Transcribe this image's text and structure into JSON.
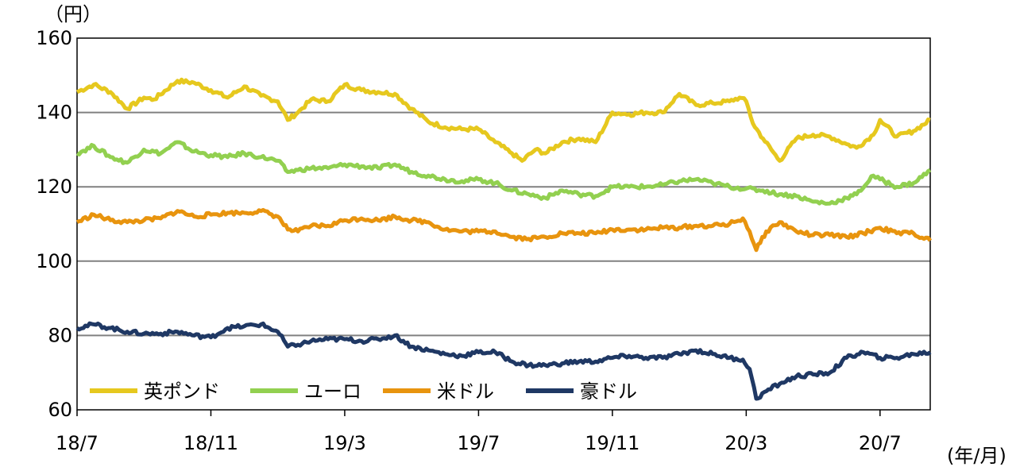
{
  "chart_data": {
    "type": "line",
    "title": "",
    "y_unit_label": "（円）",
    "x_unit_label": "(年/月)",
    "ylim": [
      60,
      160
    ],
    "y_ticks": [
      60,
      80,
      100,
      120,
      140,
      160
    ],
    "y_tick_labels": [
      "60",
      "80",
      "100",
      "120",
      "140",
      "160"
    ],
    "x_tick_labels": [
      "18/7",
      "18/11",
      "19/3",
      "19/7",
      "19/11",
      "20/3",
      "20/7"
    ],
    "x_tick_months": [
      0,
      4,
      8,
      12,
      16,
      20,
      24
    ],
    "x_range_months": [
      0,
      25.5
    ],
    "grid": true,
    "legend_position": "bottom-left",
    "series": [
      {
        "name": "英ポンド",
        "color": "#E6C81E",
        "x": [
          0,
          0.5,
          1,
          1.5,
          2,
          2.3,
          3,
          3.5,
          4,
          4.5,
          5,
          5.5,
          6,
          6.3,
          6.6,
          7,
          7.5,
          8,
          8.5,
          9,
          9.5,
          10,
          10.5,
          11,
          11.5,
          12,
          12.5,
          13,
          13.3,
          13.7,
          14,
          14.5,
          15,
          15.5,
          16,
          16.5,
          17,
          17.5,
          18,
          18.5,
          19,
          19.5,
          19.8,
          20,
          20.2,
          20.5,
          21,
          21.5,
          22,
          22.5,
          23,
          23.3,
          23.8,
          24,
          24.5,
          25,
          25.5
        ],
        "values": [
          145.5,
          147.5,
          145.5,
          141,
          144,
          143.5,
          148.5,
          148,
          146,
          144,
          147,
          144.5,
          143,
          138,
          140,
          143.5,
          143,
          147.5,
          146,
          145.5,
          145,
          141,
          137.5,
          136,
          135.5,
          135.5,
          132,
          129,
          127,
          130,
          129,
          132,
          133,
          132,
          140,
          139.5,
          140,
          140,
          145,
          142,
          142.5,
          143,
          144,
          143,
          137,
          133,
          127,
          133,
          134,
          133.5,
          131.5,
          130.5,
          134,
          138,
          133.5,
          135,
          138
        ]
      },
      {
        "name": "ユーロ",
        "color": "#92D050",
        "x": [
          0,
          0.5,
          1,
          1.5,
          2,
          2.5,
          3,
          3.5,
          4,
          4.5,
          5,
          5.5,
          6,
          6.3,
          6.6,
          7,
          7.5,
          8,
          8.5,
          9,
          9.5,
          10,
          10.5,
          11,
          11.5,
          12,
          12.5,
          13,
          13.5,
          14,
          14.5,
          15,
          15.5,
          16,
          16.5,
          17,
          17.5,
          18,
          18.5,
          19,
          19.5,
          20,
          20.5,
          21,
          21.5,
          22,
          22.5,
          23,
          23.3,
          23.8,
          24,
          24.5,
          25,
          25.5
        ],
        "values": [
          129,
          131,
          128,
          126.5,
          130,
          129,
          132,
          129.5,
          128.5,
          128,
          129,
          128,
          127,
          124,
          124.5,
          125,
          125,
          126,
          125.5,
          125,
          126,
          124,
          123,
          122,
          121.5,
          122,
          121,
          119,
          118,
          117,
          119,
          118,
          117.5,
          120,
          120,
          120,
          120.5,
          121.5,
          122,
          121,
          120,
          119.5,
          119,
          118,
          117.5,
          116,
          115.5,
          117,
          118,
          123,
          122,
          120,
          121,
          124.5
        ]
      },
      {
        "name": "米ドル",
        "color": "#E8940E",
        "x": [
          0,
          0.5,
          1,
          1.5,
          2,
          2.5,
          3,
          3.5,
          4,
          4.5,
          5,
          5.5,
          6,
          6.3,
          6.6,
          7,
          7.5,
          8,
          8.5,
          9,
          9.5,
          10,
          10.5,
          11,
          11.5,
          12,
          12.5,
          13,
          13.5,
          14,
          14.5,
          15,
          15.5,
          16,
          16.5,
          17,
          17.5,
          18,
          18.5,
          19,
          19.5,
          19.9,
          20.1,
          20.3,
          20.6,
          21,
          21.5,
          22,
          22.5,
          23,
          23.5,
          24,
          24.5,
          25,
          25.5
        ],
        "values": [
          110.5,
          112.5,
          111,
          110.5,
          111,
          111.5,
          113.5,
          112,
          112.5,
          113,
          113,
          113.5,
          112,
          108.5,
          108,
          109.5,
          109.5,
          111,
          111.5,
          111,
          112,
          111,
          110.5,
          108.5,
          108,
          108,
          108,
          106.5,
          106,
          106.5,
          107.5,
          107.5,
          107.5,
          108.5,
          108.5,
          108.5,
          109,
          109,
          109.5,
          109.5,
          110,
          111.5,
          108,
          103,
          108,
          110.5,
          108,
          107,
          107,
          106.5,
          107.5,
          109,
          107.5,
          107.5,
          105.5
        ]
      },
      {
        "name": "豪ドル",
        "color": "#1F3864",
        "x": [
          0,
          0.5,
          1,
          1.5,
          2,
          2.5,
          3,
          3.5,
          4,
          4.5,
          5,
          5.5,
          6,
          6.3,
          6.6,
          7,
          7.5,
          8,
          8.5,
          9,
          9.5,
          10,
          10.5,
          11,
          11.5,
          12,
          12.5,
          13,
          13.5,
          14,
          14.5,
          15,
          15.5,
          16,
          16.5,
          17,
          17.5,
          18,
          18.5,
          19,
          19.5,
          19.9,
          20.1,
          20.3,
          20.6,
          21,
          21.5,
          22,
          22.5,
          23,
          23.5,
          24,
          24.5,
          25,
          25.5
        ],
        "values": [
          82,
          83,
          82,
          81,
          80.5,
          80.5,
          81,
          80,
          79.5,
          82,
          82.5,
          83,
          81,
          77,
          77.5,
          78.5,
          79,
          79,
          78.5,
          79,
          80,
          77,
          76,
          75,
          74.5,
          75.5,
          75.5,
          73,
          72,
          72,
          72.5,
          73,
          73,
          74,
          74.5,
          74,
          74,
          75,
          76,
          75,
          74,
          73.5,
          71,
          63,
          65,
          67,
          69,
          69.5,
          70,
          74,
          75.5,
          74,
          74,
          75,
          75.5
        ]
      }
    ]
  }
}
